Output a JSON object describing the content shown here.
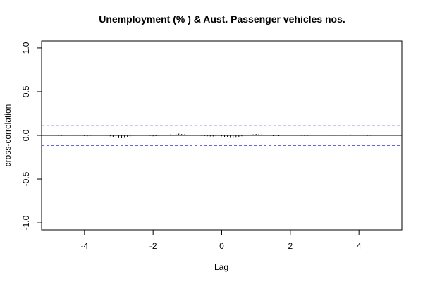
{
  "chart_data": {
    "type": "bar",
    "title": "Unemployment (% ) & Aust. Passenger vehicles nos.",
    "xlabel": "Lag",
    "ylabel": "cross-correlation",
    "xlim": [
      -5.25,
      5.25
    ],
    "ylim": [
      -1.08,
      1.08
    ],
    "x_ticks": [
      -4,
      -2,
      0,
      2,
      4
    ],
    "x_tick_labels": [
      "-4",
      "-2",
      "0",
      "2",
      "4"
    ],
    "y_ticks": [
      -1.0,
      -0.5,
      0.0,
      0.5,
      1.0
    ],
    "y_tick_labels": [
      "-1.0",
      "-0.5",
      "0.0",
      "0.5",
      "1.0"
    ],
    "confidence_limits": [
      0.115,
      -0.115
    ],
    "confidence_color": "#3333cc",
    "bar_color": "#000000",
    "lags": [
      -5.0,
      -4.917,
      -4.833,
      -4.75,
      -4.667,
      -4.583,
      -4.5,
      -4.417,
      -4.333,
      -4.25,
      -4.167,
      -4.083,
      -4.0,
      -3.917,
      -3.833,
      -3.75,
      -3.667,
      -3.583,
      -3.5,
      -3.417,
      -3.333,
      -3.25,
      -3.167,
      -3.083,
      -3.0,
      -2.917,
      -2.833,
      -2.75,
      -2.667,
      -2.583,
      -2.5,
      -2.417,
      -2.333,
      -2.25,
      -2.167,
      -2.083,
      -2.0,
      -1.917,
      -1.833,
      -1.75,
      -1.667,
      -1.583,
      -1.5,
      -1.417,
      -1.333,
      -1.25,
      -1.167,
      -1.083,
      -1.0,
      -0.917,
      -0.833,
      -0.75,
      -0.667,
      -0.583,
      -0.5,
      -0.417,
      -0.333,
      -0.25,
      -0.167,
      -0.083,
      0.0,
      0.083,
      0.167,
      0.25,
      0.333,
      0.417,
      0.5,
      0.583,
      0.667,
      0.75,
      0.833,
      0.917,
      1.0,
      1.083,
      1.167,
      1.25,
      1.333,
      1.417,
      1.5,
      1.583,
      1.667,
      1.75,
      1.833,
      1.917,
      2.0,
      2.083,
      2.167,
      2.25,
      2.333,
      2.417,
      2.5,
      2.583,
      2.667,
      2.75,
      2.833,
      2.917,
      3.0,
      3.083,
      3.167,
      3.25,
      3.333,
      3.417,
      3.5,
      3.583,
      3.667,
      3.75,
      3.833,
      3.917,
      4.0,
      4.083,
      4.167,
      4.25,
      4.333,
      4.417,
      4.5,
      4.583,
      4.667,
      4.75,
      4.833,
      4.917,
      5.0
    ],
    "values": [
      0.005,
      0.002,
      -0.004,
      -0.008,
      -0.006,
      -0.002,
      0.004,
      0.008,
      0.01,
      0.006,
      0.001,
      -0.004,
      -0.008,
      -0.01,
      -0.006,
      -0.002,
      0.003,
      0.006,
      0.004,
      0.001,
      -0.004,
      -0.01,
      -0.018,
      -0.025,
      -0.03,
      -0.032,
      -0.028,
      -0.02,
      -0.012,
      -0.005,
      0.002,
      0.006,
      0.004,
      0.001,
      -0.003,
      -0.006,
      -0.01,
      -0.008,
      -0.005,
      -0.003,
      0.002,
      0.006,
      0.01,
      0.014,
      0.018,
      0.02,
      0.016,
      0.012,
      0.008,
      0.004,
      0.001,
      -0.002,
      -0.004,
      -0.006,
      -0.008,
      -0.01,
      -0.012,
      -0.012,
      -0.01,
      -0.008,
      -0.01,
      -0.016,
      -0.022,
      -0.028,
      -0.03,
      -0.026,
      -0.018,
      -0.01,
      -0.002,
      0.004,
      0.008,
      0.012,
      0.016,
      0.018,
      0.014,
      0.008,
      0.002,
      -0.004,
      -0.008,
      -0.01,
      -0.008,
      -0.004,
      0.001,
      0.004,
      0.006,
      0.004,
      0.001,
      -0.003,
      -0.006,
      -0.008,
      -0.006,
      -0.003,
      0.002,
      0.005,
      0.006,
      0.004,
      0.001,
      -0.002,
      -0.004,
      -0.006,
      -0.004,
      -0.002,
      0.002,
      0.004,
      0.008,
      0.01,
      0.008,
      0.004,
      0.001,
      -0.002,
      -0.004,
      -0.006,
      -0.005,
      -0.003,
      0.001,
      0.003,
      0.004,
      0.002,
      0.001,
      -0.002,
      -0.003
    ]
  }
}
